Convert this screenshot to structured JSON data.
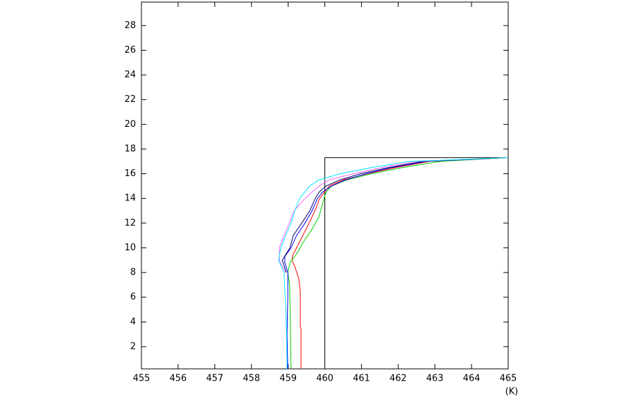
{
  "chart_data": {
    "type": "line",
    "x_label": "(K)",
    "xlim": [
      455,
      465
    ],
    "xticks": [
      455,
      456,
      457,
      458,
      459,
      460,
      461,
      462,
      463,
      464,
      465
    ],
    "ylim": [
      0.2,
      29.9
    ],
    "yticks": [
      2,
      4,
      6,
      8,
      10,
      12,
      14,
      16,
      18,
      20,
      22,
      24,
      26,
      28
    ],
    "series": [
      {
        "color": "#000000",
        "x": [
          460,
          460,
          465
        ],
        "y": [
          0.2,
          17.3,
          17.3
        ]
      },
      {
        "color": "#ff0000",
        "x": [
          459.35,
          459.35,
          459.33,
          459.33,
          459.29,
          459.18,
          459.1,
          459.14,
          459.23,
          459.4,
          459.57,
          459.73,
          459.86,
          460.12,
          460.5,
          461.16,
          461.92,
          462.86,
          465
        ],
        "y": [
          0.2,
          3.5,
          3.6,
          6.5,
          7.5,
          8.5,
          9,
          9.5,
          10,
          11,
          12,
          13,
          14,
          15,
          15.5,
          16,
          16.5,
          17,
          17.3
        ]
      },
      {
        "color": "#00cc00",
        "x": [
          459.08,
          459.06,
          459.04,
          458.99,
          459.05,
          459.23,
          459.42,
          459.65,
          459.84,
          459.93,
          460.03,
          460.18,
          460.6,
          461.26,
          462.11,
          463.15,
          465
        ],
        "y": [
          0.2,
          4,
          7,
          8,
          8.8,
          9.5,
          10.5,
          11.5,
          12.5,
          13.5,
          14.5,
          15,
          15.5,
          16,
          16.5,
          17,
          17.3
        ]
      },
      {
        "color": "#0000ff",
        "x": [
          458.99,
          458.97,
          458.99,
          458.99,
          458.91,
          458.91,
          459.08,
          459.23,
          459.46,
          459.65,
          459.8,
          459.93,
          460.18,
          460.56,
          461.12,
          461.82,
          462.77,
          465
        ],
        "y": [
          0.2,
          3,
          6,
          8,
          8.8,
          9.3,
          10,
          11,
          12,
          13,
          14,
          14.5,
          15,
          15.5,
          16,
          16.5,
          17,
          17.3
        ]
      },
      {
        "color": "#000066",
        "x": [
          458.95,
          458.84,
          459.05,
          459.14,
          459.37,
          459.59,
          459.74,
          459.84,
          460.03,
          460.41,
          460.97,
          461.73,
          462.67,
          465
        ],
        "y": [
          8,
          9,
          10,
          11,
          12,
          13,
          14,
          14.5,
          15,
          15.5,
          16,
          16.5,
          17,
          17.3
        ]
      },
      {
        "color": "#ff66ff",
        "x": [
          458.93,
          458.76,
          458.76,
          458.89,
          459.03,
          459.16,
          459.46,
          459.84,
          460.12,
          460.78,
          461.54,
          462.49,
          465
        ],
        "y": [
          8,
          9,
          10,
          11,
          12,
          13,
          14,
          15,
          15.5,
          16,
          16.5,
          17,
          17.3
        ]
      },
      {
        "color": "#00e5ff",
        "x": [
          458.97,
          458.95,
          458.89,
          458.74,
          458.8,
          458.93,
          459.08,
          459.18,
          459.31,
          459.59,
          459.84,
          460.41,
          461.26,
          462.3,
          465
        ],
        "y": [
          0.2,
          4,
          8,
          9,
          10,
          11,
          12,
          13,
          14,
          15,
          15.5,
          16,
          16.5,
          17,
          17.3
        ]
      }
    ]
  }
}
